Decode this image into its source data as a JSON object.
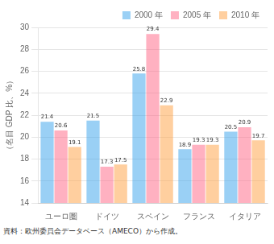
{
  "chart_data": {
    "type": "bar",
    "categories": [
      "ユーロ圏",
      "ドイツ",
      "スペイン",
      "フランス",
      "イタリア"
    ],
    "series": [
      {
        "name": "2000 年",
        "values": [
          21.4,
          21.5,
          25.8,
          18.9,
          20.5
        ]
      },
      {
        "name": "2005 年",
        "values": [
          20.6,
          17.3,
          29.4,
          19.3,
          20.9
        ]
      },
      {
        "name": "2010 年",
        "values": [
          19.1,
          17.5,
          22.9,
          19.3,
          19.7
        ]
      }
    ],
    "ylabel": "（名目 GDP 比、%）",
    "footnote": "資料：欧州委員会データベース（AMECO）から作成。",
    "ylim": [
      14,
      30
    ],
    "yticks": [
      14,
      16,
      18,
      20,
      22,
      24,
      26,
      28,
      30
    ],
    "grid": true,
    "legend": "upper right",
    "data_labels": true
  }
}
